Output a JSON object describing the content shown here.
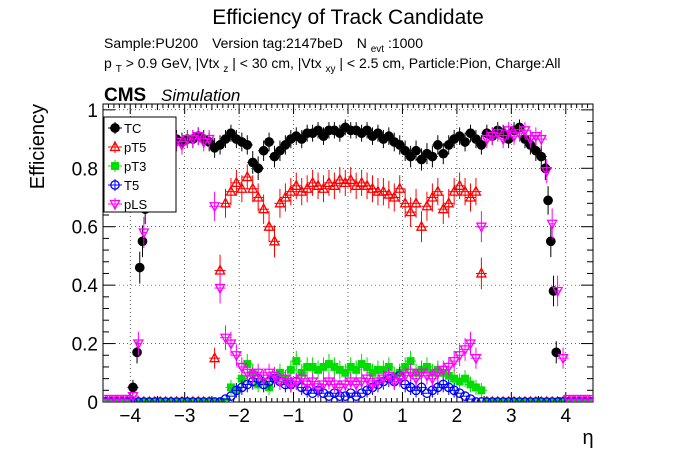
{
  "chart_data": {
    "type": "scatter",
    "title": "Efficiency of Track Candidate",
    "subtitle_line1": {
      "sample": "Sample:PU200",
      "version": "Version tag:2147beD",
      "nevt_prefix": "N",
      "nevt_sub": "evt",
      "nevt_value": ":1000"
    },
    "subtitle_line2": {
      "p": "p",
      "p_sub": "T",
      "t1": " > 0.9 GeV, |Vtx",
      "s1": "z",
      "t2": "| < 30 cm, |Vtx",
      "s2": "xy",
      "t3": "| < 2.5 cm, Particle:Pion, Charge:All"
    },
    "cms_label": "CMS",
    "simulation_label": "Simulation",
    "xlabel": "η",
    "ylabel": "Efficiency",
    "xlim": [
      -4.5,
      4.5
    ],
    "ylim": [
      0,
      1.02
    ],
    "xticks": [
      -4,
      -3,
      -2,
      -1,
      0,
      1,
      2,
      3,
      4
    ],
    "xtick_labels": [
      "−4",
      "−3",
      "−2",
      "−1",
      "0",
      "1",
      "2",
      "3",
      "4"
    ],
    "yticks": [
      0,
      0.2,
      0.4,
      0.6,
      0.8,
      1
    ],
    "ytick_labels": [
      "0",
      "0.2",
      "0.4",
      "0.6",
      "0.8",
      "1"
    ],
    "grid": true,
    "legend_position": "top-left",
    "series": [
      {
        "name": "TC",
        "color": "#000000",
        "marker": "filled-circle",
        "x": [
          -4.45,
          -4.35,
          -4.25,
          -4.15,
          -4.05,
          -3.95,
          -3.875,
          -3.825,
          -3.775,
          -3.725,
          -3.675,
          -3.625,
          -3.55,
          -3.45,
          -3.35,
          -3.25,
          -3.15,
          -3.05,
          -2.95,
          -2.85,
          -2.75,
          -2.65,
          -2.55,
          -2.45,
          -2.35,
          -2.25,
          -2.15,
          -2.05,
          -1.95,
          -1.85,
          -1.75,
          -1.65,
          -1.55,
          -1.45,
          -1.35,
          -1.25,
          -1.15,
          -1.05,
          -0.95,
          -0.85,
          -0.75,
          -0.65,
          -0.55,
          -0.45,
          -0.35,
          -0.25,
          -0.15,
          -0.05,
          0.05,
          0.15,
          0.25,
          0.35,
          0.45,
          0.55,
          0.65,
          0.75,
          0.85,
          0.95,
          1.05,
          1.15,
          1.25,
          1.35,
          1.45,
          1.55,
          1.65,
          1.75,
          1.85,
          1.95,
          2.05,
          2.15,
          2.25,
          2.35,
          2.45,
          2.55,
          2.65,
          2.75,
          2.85,
          2.95,
          3.05,
          3.15,
          3.25,
          3.35,
          3.45,
          3.55,
          3.625,
          3.675,
          3.725,
          3.775,
          3.825,
          3.875,
          3.95,
          4.05,
          4.15,
          4.25,
          4.35,
          4.45
        ],
        "y": [
          0,
          0,
          0,
          0,
          0,
          0.05,
          0.17,
          0.46,
          0.55,
          0.66,
          0.85,
          0.89,
          0.9,
          0.89,
          0.9,
          0.88,
          0.9,
          0.89,
          0.9,
          0.9,
          0.91,
          0.9,
          0.89,
          0.87,
          0.88,
          0.9,
          0.92,
          0.9,
          0.89,
          0.88,
          0.82,
          0.8,
          0.86,
          0.89,
          0.84,
          0.86,
          0.88,
          0.9,
          0.91,
          0.9,
          0.92,
          0.92,
          0.93,
          0.91,
          0.93,
          0.93,
          0.92,
          0.94,
          0.93,
          0.93,
          0.92,
          0.93,
          0.91,
          0.92,
          0.9,
          0.91,
          0.89,
          0.88,
          0.86,
          0.84,
          0.86,
          0.83,
          0.85,
          0.84,
          0.88,
          0.85,
          0.88,
          0.9,
          0.91,
          0.89,
          0.92,
          0.9,
          0.88,
          0.92,
          0.91,
          0.93,
          0.92,
          0.9,
          0.93,
          0.94,
          0.9,
          0.88,
          0.86,
          0.84,
          0.8,
          0.69,
          0.55,
          0.38,
          0.17,
          0,
          0,
          0,
          0,
          0,
          0,
          0
        ]
      },
      {
        "name": "pT5",
        "color": "#ff0000",
        "marker": "open-triangle",
        "x": [
          -4.45,
          -4.35,
          -4.25,
          -4.15,
          -4.05,
          -3.95,
          -3.85,
          -3.75,
          -3.65,
          -3.55,
          -3.45,
          -3.35,
          -3.25,
          -3.15,
          -3.05,
          -2.95,
          -2.85,
          -2.75,
          -2.65,
          -2.55,
          -2.45,
          -2.35,
          -2.25,
          -2.15,
          -2.05,
          -1.95,
          -1.85,
          -1.75,
          -1.65,
          -1.55,
          -1.45,
          -1.35,
          -1.25,
          -1.15,
          -1.05,
          -0.95,
          -0.85,
          -0.75,
          -0.65,
          -0.55,
          -0.45,
          -0.35,
          -0.25,
          -0.15,
          -0.05,
          0.05,
          0.15,
          0.25,
          0.35,
          0.45,
          0.55,
          0.65,
          0.75,
          0.85,
          0.95,
          1.05,
          1.15,
          1.25,
          1.35,
          1.45,
          1.55,
          1.65,
          1.75,
          1.85,
          1.95,
          2.05,
          2.15,
          2.25,
          2.35,
          2.45,
          2.55,
          2.65,
          2.75,
          2.85,
          2.95,
          3.05,
          3.15,
          3.25,
          3.35,
          3.45,
          3.55,
          3.65,
          3.75,
          3.85,
          3.95,
          4.05,
          4.15,
          4.25,
          4.35,
          4.45
        ],
        "y": [
          0,
          0,
          0,
          0,
          0,
          0,
          0,
          0,
          0,
          0,
          0,
          0,
          0,
          0,
          0,
          0,
          0,
          0,
          0,
          0,
          0.15,
          0.45,
          0.68,
          0.72,
          0.75,
          0.73,
          0.77,
          0.73,
          0.7,
          0.66,
          0.6,
          0.55,
          0.68,
          0.7,
          0.72,
          0.74,
          0.72,
          0.73,
          0.75,
          0.74,
          0.73,
          0.75,
          0.74,
          0.76,
          0.75,
          0.76,
          0.74,
          0.75,
          0.74,
          0.73,
          0.72,
          0.72,
          0.71,
          0.7,
          0.73,
          0.68,
          0.65,
          0.68,
          0.6,
          0.67,
          0.7,
          0.72,
          0.66,
          0.68,
          0.72,
          0.74,
          0.72,
          0.7,
          0.72,
          0.44,
          0,
          0,
          0,
          0,
          0,
          0,
          0,
          0,
          0,
          0,
          0,
          0,
          0,
          0,
          0,
          0,
          0,
          0,
          0,
          0
        ]
      },
      {
        "name": "pT3",
        "color": "#00dd00",
        "marker": "filled-square",
        "x": [
          -4.45,
          -4.35,
          -4.25,
          -4.15,
          -4.05,
          -3.95,
          -3.85,
          -3.75,
          -3.65,
          -3.55,
          -3.45,
          -3.35,
          -3.25,
          -3.15,
          -3.05,
          -2.95,
          -2.85,
          -2.75,
          -2.65,
          -2.55,
          -2.45,
          -2.35,
          -2.25,
          -2.15,
          -2.05,
          -1.95,
          -1.85,
          -1.75,
          -1.65,
          -1.55,
          -1.45,
          -1.35,
          -1.25,
          -1.15,
          -1.05,
          -0.95,
          -0.85,
          -0.75,
          -0.65,
          -0.55,
          -0.45,
          -0.35,
          -0.25,
          -0.15,
          -0.05,
          0.05,
          0.15,
          0.25,
          0.35,
          0.45,
          0.55,
          0.65,
          0.75,
          0.85,
          0.95,
          1.05,
          1.15,
          1.25,
          1.35,
          1.45,
          1.55,
          1.65,
          1.75,
          1.85,
          1.95,
          2.05,
          2.15,
          2.25,
          2.35,
          2.45,
          2.55,
          2.65,
          2.75,
          2.85,
          2.95,
          3.05,
          3.15,
          3.25,
          3.35,
          3.45,
          3.55,
          3.65,
          3.75,
          3.85,
          3.95,
          4.05,
          4.15,
          4.25,
          4.35,
          4.45
        ],
        "y": [
          0,
          0,
          0,
          0,
          0,
          0,
          0,
          0,
          0,
          0,
          0,
          0,
          0,
          0,
          0,
          0,
          0,
          0,
          0,
          0,
          0,
          0,
          0,
          0.05,
          0.04,
          0.08,
          0.13,
          0.1,
          0.06,
          0.07,
          0.05,
          0.08,
          0.1,
          0.08,
          0.11,
          0.14,
          0.1,
          0.12,
          0.12,
          0.11,
          0.12,
          0.13,
          0.12,
          0.11,
          0.1,
          0.12,
          0.11,
          0.13,
          0.12,
          0.1,
          0.11,
          0.11,
          0.12,
          0.09,
          0.1,
          0.12,
          0.14,
          0.1,
          0.11,
          0.12,
          0.1,
          0.11,
          0.1,
          0.09,
          0.08,
          0.07,
          0.08,
          0.06,
          0.05,
          0.04,
          0,
          0,
          0,
          0,
          0,
          0,
          0,
          0,
          0,
          0,
          0,
          0,
          0,
          0,
          0,
          0,
          0,
          0,
          0,
          0
        ]
      },
      {
        "name": "T5",
        "color": "#0000ff",
        "marker": "open-circle",
        "x": [
          -4.45,
          -4.35,
          -4.25,
          -4.15,
          -4.05,
          -3.95,
          -3.85,
          -3.75,
          -3.65,
          -3.55,
          -3.45,
          -3.35,
          -3.25,
          -3.15,
          -3.05,
          -2.95,
          -2.85,
          -2.75,
          -2.65,
          -2.55,
          -2.45,
          -2.35,
          -2.25,
          -2.15,
          -2.05,
          -1.95,
          -1.85,
          -1.75,
          -1.65,
          -1.55,
          -1.45,
          -1.35,
          -1.25,
          -1.15,
          -1.05,
          -0.95,
          -0.85,
          -0.75,
          -0.65,
          -0.55,
          -0.45,
          -0.35,
          -0.25,
          -0.15,
          -0.05,
          0.05,
          0.15,
          0.25,
          0.35,
          0.45,
          0.55,
          0.65,
          0.75,
          0.85,
          0.95,
          1.05,
          1.15,
          1.25,
          1.35,
          1.45,
          1.55,
          1.65,
          1.75,
          1.85,
          1.95,
          2.05,
          2.15,
          2.25,
          2.35,
          2.45,
          2.55,
          2.65,
          2.75,
          2.85,
          2.95,
          3.05,
          3.15,
          3.25,
          3.35,
          3.45,
          3.55,
          3.65,
          3.75,
          3.85,
          3.95,
          4.05,
          4.15,
          4.25,
          4.35,
          4.45
        ],
        "y": [
          0,
          0,
          0,
          0,
          0,
          0,
          0,
          0,
          0,
          0,
          0,
          0,
          0,
          0,
          0,
          0,
          0,
          0,
          0,
          0,
          0,
          0,
          0.01,
          0.02,
          0.04,
          0.05,
          0.06,
          0.07,
          0.08,
          0.06,
          0.07,
          0.08,
          0.07,
          0.06,
          0.06,
          0.07,
          0.05,
          0.04,
          0.03,
          0.04,
          0.03,
          0.02,
          0.03,
          0.02,
          0.02,
          0.03,
          0.02,
          0.03,
          0.04,
          0.05,
          0.06,
          0.07,
          0.08,
          0.07,
          0.09,
          0.06,
          0.05,
          0.04,
          0.05,
          0.03,
          0.04,
          0.05,
          0.06,
          0.05,
          0.04,
          0.03,
          0.02,
          0.01,
          0,
          0,
          0,
          0,
          0,
          0,
          0,
          0,
          0,
          0,
          0,
          0,
          0,
          0,
          0,
          0,
          0,
          0,
          0,
          0,
          0,
          0
        ]
      },
      {
        "name": "pLS",
        "color": "#ff00ff",
        "marker": "open-triangle-down",
        "x": [
          -4.45,
          -4.35,
          -4.25,
          -4.15,
          -4.05,
          -3.95,
          -3.85,
          -3.75,
          -3.65,
          -3.55,
          -3.45,
          -3.35,
          -3.25,
          -3.15,
          -3.05,
          -2.95,
          -2.85,
          -2.75,
          -2.65,
          -2.55,
          -2.45,
          -2.35,
          -2.25,
          -2.15,
          -2.05,
          -1.95,
          -1.85,
          -1.75,
          -1.65,
          -1.55,
          -1.45,
          -1.35,
          -1.25,
          -1.15,
          -1.05,
          -0.95,
          -0.85,
          -0.75,
          -0.65,
          -0.55,
          -0.45,
          -0.35,
          -0.25,
          -0.15,
          -0.05,
          0.05,
          0.15,
          0.25,
          0.35,
          0.45,
          0.55,
          0.65,
          0.75,
          0.85,
          0.95,
          1.05,
          1.15,
          1.25,
          1.35,
          1.45,
          1.55,
          1.65,
          1.75,
          1.85,
          1.95,
          2.05,
          2.15,
          2.25,
          2.35,
          2.45,
          2.55,
          2.65,
          2.75,
          2.85,
          2.95,
          3.05,
          3.15,
          3.25,
          3.35,
          3.45,
          3.55,
          3.65,
          3.75,
          3.85,
          3.95,
          4.05,
          4.15,
          4.25,
          4.35,
          4.45
        ],
        "y": [
          0.01,
          0.01,
          0.01,
          0.01,
          0.01,
          0.02,
          0.2,
          0.58,
          0.85,
          0.89,
          0.88,
          0.9,
          0.88,
          0.89,
          0.88,
          0.9,
          0.9,
          0.91,
          0.89,
          0.9,
          0.67,
          0.39,
          0.22,
          0.2,
          0.16,
          0.12,
          0.1,
          0.09,
          0.1,
          0.08,
          0.1,
          0.09,
          0.07,
          0.08,
          0.06,
          0.07,
          0.08,
          0.06,
          0.07,
          0.05,
          0.06,
          0.07,
          0.06,
          0.05,
          0.06,
          0.07,
          0.06,
          0.07,
          0.08,
          0.06,
          0.07,
          0.08,
          0.09,
          0.07,
          0.08,
          0.09,
          0.1,
          0.08,
          0.1,
          0.09,
          0.08,
          0.1,
          0.11,
          0.12,
          0.14,
          0.16,
          0.18,
          0.2,
          0.15,
          0.6,
          0.9,
          0.91,
          0.92,
          0.9,
          0.93,
          0.91,
          0.92,
          0.93,
          0.9,
          0.91,
          0.9,
          0.79,
          0.61,
          0.38,
          0.15,
          0.01,
          0.01,
          0.01,
          0.01,
          0.01
        ]
      }
    ]
  }
}
